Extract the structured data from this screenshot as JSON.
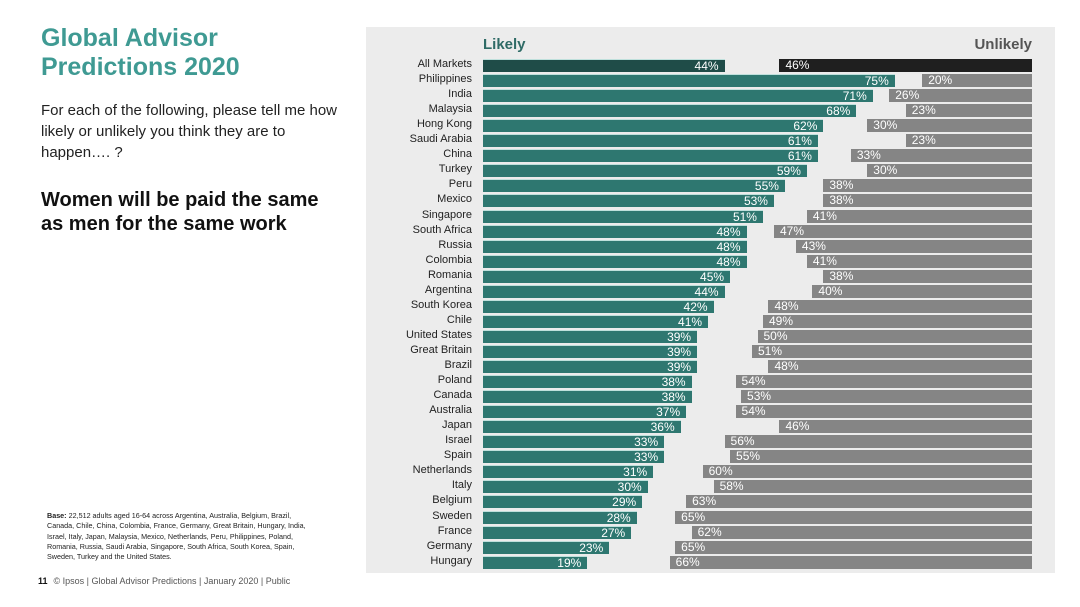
{
  "title": "Global Advisor Predictions 2020",
  "question": "For each of the following, please tell me how likely or unlikely you think they are to happen…. ?",
  "statement": "Women will be paid the same as men for the same work",
  "base_label": "Base:",
  "base_text": "22,512 adults aged 16-64 across Argentina, Australia, Belgium, Brazil, Canada, Chile, China, Colombia, France, Germany, Great Britain, Hungary, India, Israel, Italy, Japan, Malaysia, Mexico, Netherlands, Peru, Philippines, Poland, Romania, Russia, Saudi Arabia, Singapore, South Africa, South Korea, Spain, Sweden, Turkey and the United States.",
  "footer": {
    "page": "11",
    "text": "© Ipsos | Global Advisor Predictions | January 2020 | Public"
  },
  "colors": {
    "likely": "#2e7770",
    "likely_total": "#1f4c48",
    "unlikely": "#858585",
    "unlikely_total": "#1f1f1f"
  },
  "chart_data": {
    "type": "bar",
    "orientation": "horizontal-diverging",
    "legend_left": "Likely",
    "legend_right": "Unlikely",
    "xlim": [
      0,
      100
    ],
    "categories": [
      "All Markets",
      "Philippines",
      "India",
      "Malaysia",
      "Hong Kong",
      "Saudi Arabia",
      "China",
      "Turkey",
      "Peru",
      "Mexico",
      "Singapore",
      "South Africa",
      "Russia",
      "Colombia",
      "Romania",
      "Argentina",
      "South Korea",
      "Chile",
      "United States",
      "Great Britain",
      "Brazil",
      "Poland",
      "Canada",
      "Australia",
      "Japan",
      "Israel",
      "Spain",
      "Netherlands",
      "Italy",
      "Belgium",
      "Sweden",
      "France",
      "Germany",
      "Hungary"
    ],
    "series": [
      {
        "name": "Likely",
        "values": [
          44,
          75,
          71,
          68,
          62,
          61,
          61,
          59,
          55,
          53,
          51,
          48,
          48,
          48,
          45,
          44,
          42,
          41,
          39,
          39,
          39,
          38,
          38,
          37,
          36,
          33,
          33,
          31,
          30,
          29,
          28,
          27,
          23,
          19
        ]
      },
      {
        "name": "Unlikely",
        "values": [
          46,
          20,
          26,
          23,
          30,
          23,
          33,
          30,
          38,
          38,
          41,
          47,
          43,
          41,
          38,
          40,
          48,
          49,
          50,
          51,
          48,
          54,
          53,
          54,
          46,
          56,
          55,
          60,
          58,
          63,
          65,
          62,
          65,
          66
        ]
      }
    ]
  }
}
